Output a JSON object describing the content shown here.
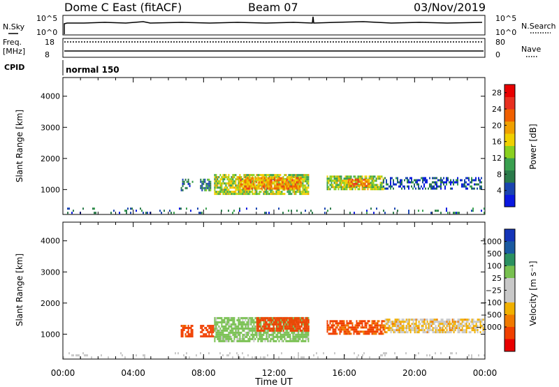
{
  "header": {
    "title": "Dome C East (fitACF)",
    "beam": "Beam 07",
    "date": "03/Nov/2019"
  },
  "strips": {
    "nsky_label": "N.Sky",
    "nsky_ticks": [
      "10^5",
      "10^0"
    ],
    "nsearch_label": "N.Search",
    "nsearch_ticks": [
      "10^5",
      "10^0"
    ],
    "freq_label": "Freq.",
    "freq_unit": "[MHz]",
    "freq_ticks": [
      "18",
      "8"
    ],
    "nave_label": "Nave",
    "nave_ticks": [
      "80",
      "0"
    ],
    "cpid_label": "CPID",
    "cpid_value": "normal 150"
  },
  "colors": {
    "power_scale": [
      "#0a18e0",
      "#1a44b0",
      "#2a7a4a",
      "#3aa050",
      "#8ad020",
      "#f0d000",
      "#f0a000",
      "#f06000",
      "#e83020",
      "#e80000"
    ],
    "velocity_scale": [
      "#e80000",
      "#f04000",
      "#f07a00",
      "#f0b000",
      "#c8c8c8",
      "#c8c8c8",
      "#78c050",
      "#2a9060",
      "#1a5aa0",
      "#1434b8"
    ]
  },
  "chart_data": [
    {
      "type": "heatmap",
      "quantity": "power",
      "ylabel": "Slant Range [km]",
      "ylim": [
        200,
        4600
      ],
      "yticks": [
        "1000",
        "2000",
        "3000",
        "4000"
      ],
      "xlim_hours": [
        0,
        24
      ],
      "xticks": [
        "00:00",
        "04:00",
        "08:00",
        "12:00",
        "16:00",
        "20:00",
        "00:00"
      ],
      "colorbar_label": "Power [dB]",
      "colorbar_ticks": [
        "4",
        "8",
        "12",
        "16",
        "20",
        "24",
        "28"
      ],
      "colorbar_range": [
        0,
        30
      ],
      "echo_regions": [
        {
          "start_hour": 6.7,
          "end_hour": 7.4,
          "range_km": [
            950,
            1350
          ],
          "value": 6
        },
        {
          "start_hour": 7.8,
          "end_hour": 8.4,
          "range_km": [
            1000,
            1350
          ],
          "value": 8
        },
        {
          "start_hour": 8.6,
          "end_hour": 14.0,
          "range_km": [
            850,
            1500
          ],
          "value": 14
        },
        {
          "start_hour": 10.0,
          "end_hour": 13.5,
          "range_km": [
            1000,
            1400
          ],
          "value": 20
        },
        {
          "start_hour": 15.0,
          "end_hour": 18.2,
          "range_km": [
            1000,
            1450
          ],
          "value": 14
        },
        {
          "start_hour": 16.2,
          "end_hour": 17.4,
          "range_km": [
            1100,
            1350
          ],
          "value": 22
        },
        {
          "start_hour": 18.2,
          "end_hour": 23.8,
          "range_km": [
            1050,
            1400
          ],
          "value": 5
        },
        {
          "start_hour": 0.0,
          "end_hour": 24.0,
          "range_km": [
            250,
            420
          ],
          "value": 6
        }
      ]
    },
    {
      "type": "heatmap",
      "quantity": "velocity",
      "ylabel": "Slant Range [km]",
      "ylim": [
        200,
        4600
      ],
      "yticks": [
        "1000",
        "2000",
        "3000",
        "4000"
      ],
      "xlim_hours": [
        0,
        24
      ],
      "xticks": [
        "00:00",
        "04:00",
        "08:00",
        "12:00",
        "16:00",
        "20:00",
        "00:00"
      ],
      "xlabel": "Time UT",
      "colorbar_label": "Velocity [m s⁻¹]",
      "colorbar_ticks": [
        "1000",
        "500",
        "100",
        "25",
        "−25",
        "−100",
        "−500",
        "−1000"
      ],
      "echo_regions": [
        {
          "start_hour": 6.7,
          "end_hour": 7.4,
          "range_km": [
            950,
            1300
          ],
          "value": -150
        },
        {
          "start_hour": 7.8,
          "end_hour": 8.6,
          "range_km": [
            950,
            1300
          ],
          "value": -200
        },
        {
          "start_hour": 8.6,
          "end_hour": 14.0,
          "range_km": [
            800,
            1550
          ],
          "value": 150
        },
        {
          "start_hour": 11.0,
          "end_hour": 14.0,
          "range_km": [
            1100,
            1550
          ],
          "value": -250
        },
        {
          "start_hour": 15.0,
          "end_hour": 18.3,
          "range_km": [
            1000,
            1450
          ],
          "value": -120
        },
        {
          "start_hour": 18.3,
          "end_hour": 23.9,
          "range_km": [
            1050,
            1500
          ],
          "value": 0
        },
        {
          "start_hour": 0.0,
          "end_hour": 24.0,
          "range_km": [
            250,
            420
          ],
          "value": 50
        }
      ]
    }
  ]
}
